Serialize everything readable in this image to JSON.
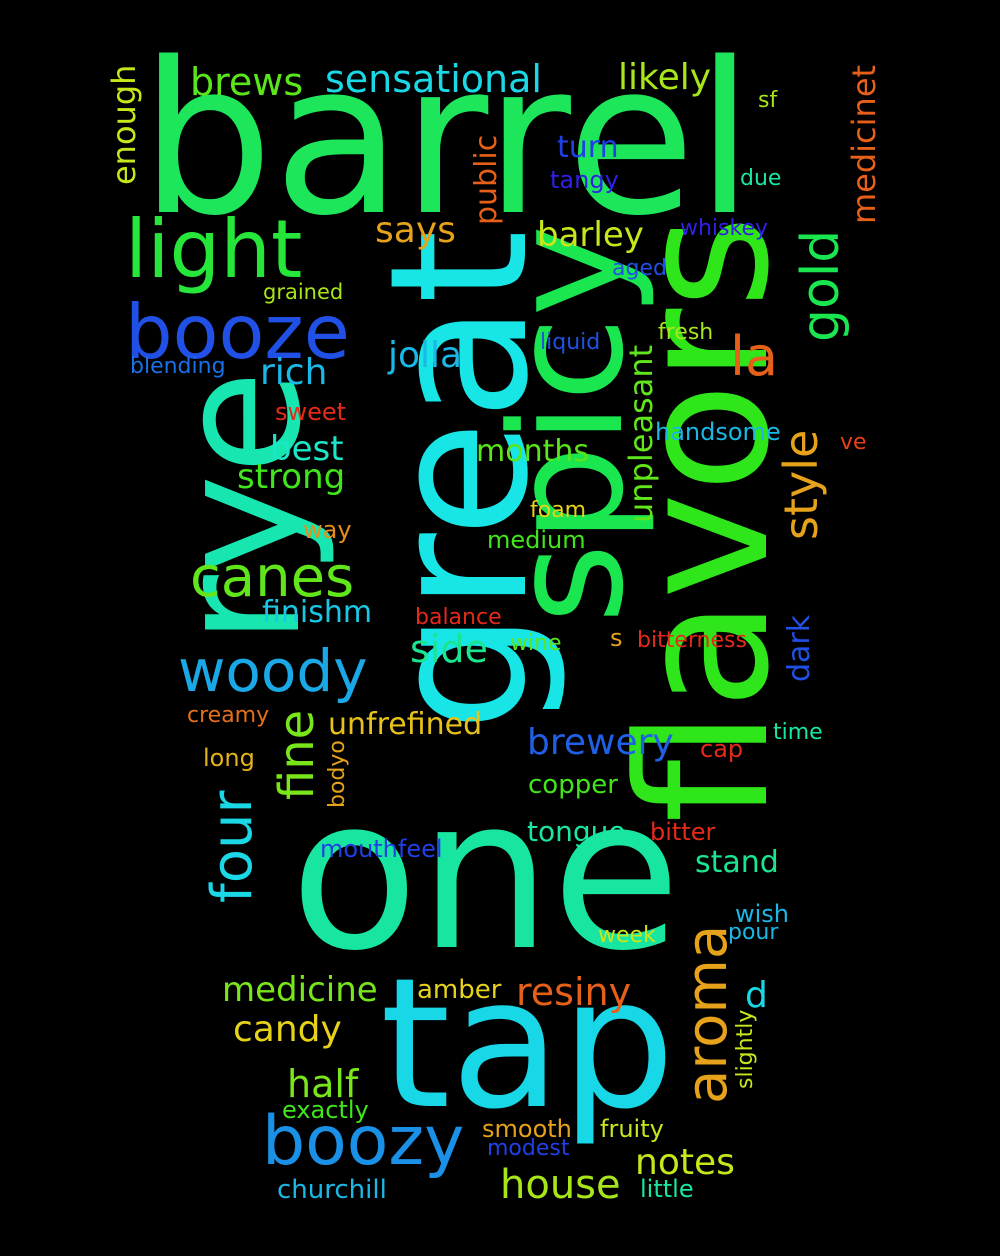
{
  "background": "#000000",
  "words": [
    {
      "text": "barrel",
      "color": "#1ee65a",
      "weight": 1.0
    },
    {
      "text": "one",
      "color": "#18e6a0",
      "weight": 0.9
    },
    {
      "text": "great",
      "color": "#18e6e6",
      "weight": 0.9
    },
    {
      "text": "flavors",
      "color": "#2ee61a",
      "weight": 0.95
    },
    {
      "text": "spicy",
      "color": "#1ae650",
      "weight": 0.85
    },
    {
      "text": "tap",
      "color": "#18d8e8",
      "weight": 0.8
    },
    {
      "text": "rye",
      "color": "#18e6b0",
      "weight": 0.75
    },
    {
      "text": "light",
      "color": "#26e63a",
      "weight": 0.45
    },
    {
      "text": "booze",
      "color": "#2050e6",
      "weight": 0.4
    },
    {
      "text": "boozy",
      "color": "#1a90e6",
      "weight": 0.38
    },
    {
      "text": "woody",
      "color": "#1aa8e6",
      "weight": 0.32
    },
    {
      "text": "canes",
      "color": "#60e61a",
      "weight": 0.3
    },
    {
      "text": "four",
      "color": "#1ad8e6",
      "weight": 0.3
    },
    {
      "text": "aroma",
      "color": "#e6a21a",
      "weight": 0.32
    },
    {
      "text": "gold",
      "color": "#1ae650",
      "weight": 0.3
    },
    {
      "text": "la",
      "color": "#e6601a",
      "weight": 0.3
    },
    {
      "text": "fine",
      "color": "#78e61a",
      "weight": 0.25
    },
    {
      "text": "style",
      "color": "#e6a21a",
      "weight": 0.24
    },
    {
      "text": "sensational",
      "color": "#1ad8e6",
      "weight": 0.2
    },
    {
      "text": "brews",
      "color": "#5ae61a",
      "weight": 0.2
    },
    {
      "text": "likely",
      "color": "#a8e61a",
      "weight": 0.2
    },
    {
      "text": "enough",
      "color": "#c8e61a",
      "weight": 0.18
    },
    {
      "text": "medicinet",
      "color": "#e6601a",
      "weight": 0.18
    },
    {
      "text": "says",
      "color": "#e6a21a",
      "weight": 0.2
    },
    {
      "text": "barley",
      "color": "#c8e61a",
      "weight": 0.19
    },
    {
      "text": "public",
      "color": "#e6601a",
      "weight": 0.17
    },
    {
      "text": "turn",
      "color": "#2040e6",
      "weight": 0.17
    },
    {
      "text": "tangy",
      "color": "#3020e6",
      "weight": 0.14
    },
    {
      "text": "sf",
      "color": "#a8e61a",
      "weight": 0.12
    },
    {
      "text": "due",
      "color": "#1ae6a0",
      "weight": 0.13
    },
    {
      "text": "whiskey",
      "color": "#3020e6",
      "weight": 0.12
    },
    {
      "text": "aged",
      "color": "#2050e6",
      "weight": 0.12
    },
    {
      "text": "grained",
      "color": "#a8e61a",
      "weight": 0.12
    },
    {
      "text": "jolla",
      "color": "#1ab8e6",
      "weight": 0.2
    },
    {
      "text": "rich",
      "color": "#1ab8e6",
      "weight": 0.2
    },
    {
      "text": "blending",
      "color": "#1a70e6",
      "weight": 0.13
    },
    {
      "text": "liquid",
      "color": "#2050e6",
      "weight": 0.12
    },
    {
      "text": "fresh",
      "color": "#a8e61a",
      "weight": 0.13
    },
    {
      "text": "unpleasant",
      "color": "#60e61a",
      "weight": 0.18
    },
    {
      "text": "sweet",
      "color": "#e62a1a",
      "weight": 0.14
    },
    {
      "text": "best",
      "color": "#1ae6c8",
      "weight": 0.19
    },
    {
      "text": "strong",
      "color": "#40e61a",
      "weight": 0.19
    },
    {
      "text": "months",
      "color": "#5ae61a",
      "weight": 0.17
    },
    {
      "text": "handsome",
      "color": "#1ab8e6",
      "weight": 0.13
    },
    {
      "text": "ve",
      "color": "#e6401a",
      "weight": 0.12
    },
    {
      "text": "foam",
      "color": "#e6d21a",
      "weight": 0.12
    },
    {
      "text": "way",
      "color": "#e6901a",
      "weight": 0.13
    },
    {
      "text": "medium",
      "color": "#40e61a",
      "weight": 0.13
    },
    {
      "text": "finishm",
      "color": "#1ac8e6",
      "weight": 0.17
    },
    {
      "text": "balance",
      "color": "#e62a1a",
      "weight": 0.12
    },
    {
      "text": "side",
      "color": "#1ae690",
      "weight": 0.19
    },
    {
      "text": "wine",
      "color": "#5ae61a",
      "weight": 0.12
    },
    {
      "text": "s",
      "color": "#e6a21a",
      "weight": 0.13
    },
    {
      "text": "bitterness",
      "color": "#e62a1a",
      "weight": 0.12
    },
    {
      "text": "dark",
      "color": "#2050e6",
      "weight": 0.17
    },
    {
      "text": "creamy",
      "color": "#e6701a",
      "weight": 0.13
    },
    {
      "text": "unfrefined",
      "color": "#e6c21a",
      "weight": 0.17
    },
    {
      "text": "brewery",
      "color": "#2060e6",
      "weight": 0.19
    },
    {
      "text": "cap",
      "color": "#e62a1a",
      "weight": 0.13
    },
    {
      "text": "time",
      "color": "#1ae6a0",
      "weight": 0.12
    },
    {
      "text": "long",
      "color": "#e6b21a",
      "weight": 0.13
    },
    {
      "text": "bodyo",
      "color": "#e6a21a",
      "weight": 0.12
    },
    {
      "text": "copper",
      "color": "#40e61a",
      "weight": 0.14
    },
    {
      "text": "tongue",
      "color": "#1ae6a0",
      "weight": 0.15
    },
    {
      "text": "bitter",
      "color": "#e62a1a",
      "weight": 0.13
    },
    {
      "text": "mouthfeel",
      "color": "#2040e6",
      "weight": 0.12
    },
    {
      "text": "stand",
      "color": "#1ae690",
      "weight": 0.16
    },
    {
      "text": "wish",
      "color": "#1ab8e6",
      "weight": 0.13
    },
    {
      "text": "week",
      "color": "#c8e61a",
      "weight": 0.12
    },
    {
      "text": "pour",
      "color": "#1ab8e6",
      "weight": 0.12
    },
    {
      "text": "medicine",
      "color": "#78e61a",
      "weight": 0.2
    },
    {
      "text": "amber",
      "color": "#e6d21a",
      "weight": 0.14
    },
    {
      "text": "resiny",
      "color": "#e6601a",
      "weight": 0.2
    },
    {
      "text": "d",
      "color": "#1ad8e6",
      "weight": 0.2
    },
    {
      "text": "candy",
      "color": "#e6d21a",
      "weight": 0.2
    },
    {
      "text": "slightly",
      "color": "#c8e61a",
      "weight": 0.12
    },
    {
      "text": "half",
      "color": "#78e61a",
      "weight": 0.2
    },
    {
      "text": "exactly",
      "color": "#40e61a",
      "weight": 0.13
    },
    {
      "text": "smooth",
      "color": "#e6a21a",
      "weight": 0.13
    },
    {
      "text": "fruity",
      "color": "#c8e61a",
      "weight": 0.13
    },
    {
      "text": "modest",
      "color": "#2040e6",
      "weight": 0.12
    },
    {
      "text": "notes",
      "color": "#c8e61a",
      "weight": 0.2
    },
    {
      "text": "house",
      "color": "#a8e61a",
      "weight": 0.2
    },
    {
      "text": "churchill",
      "color": "#1ab8e6",
      "weight": 0.14
    },
    {
      "text": "little",
      "color": "#1ae6a0",
      "weight": 0.13
    }
  ]
}
